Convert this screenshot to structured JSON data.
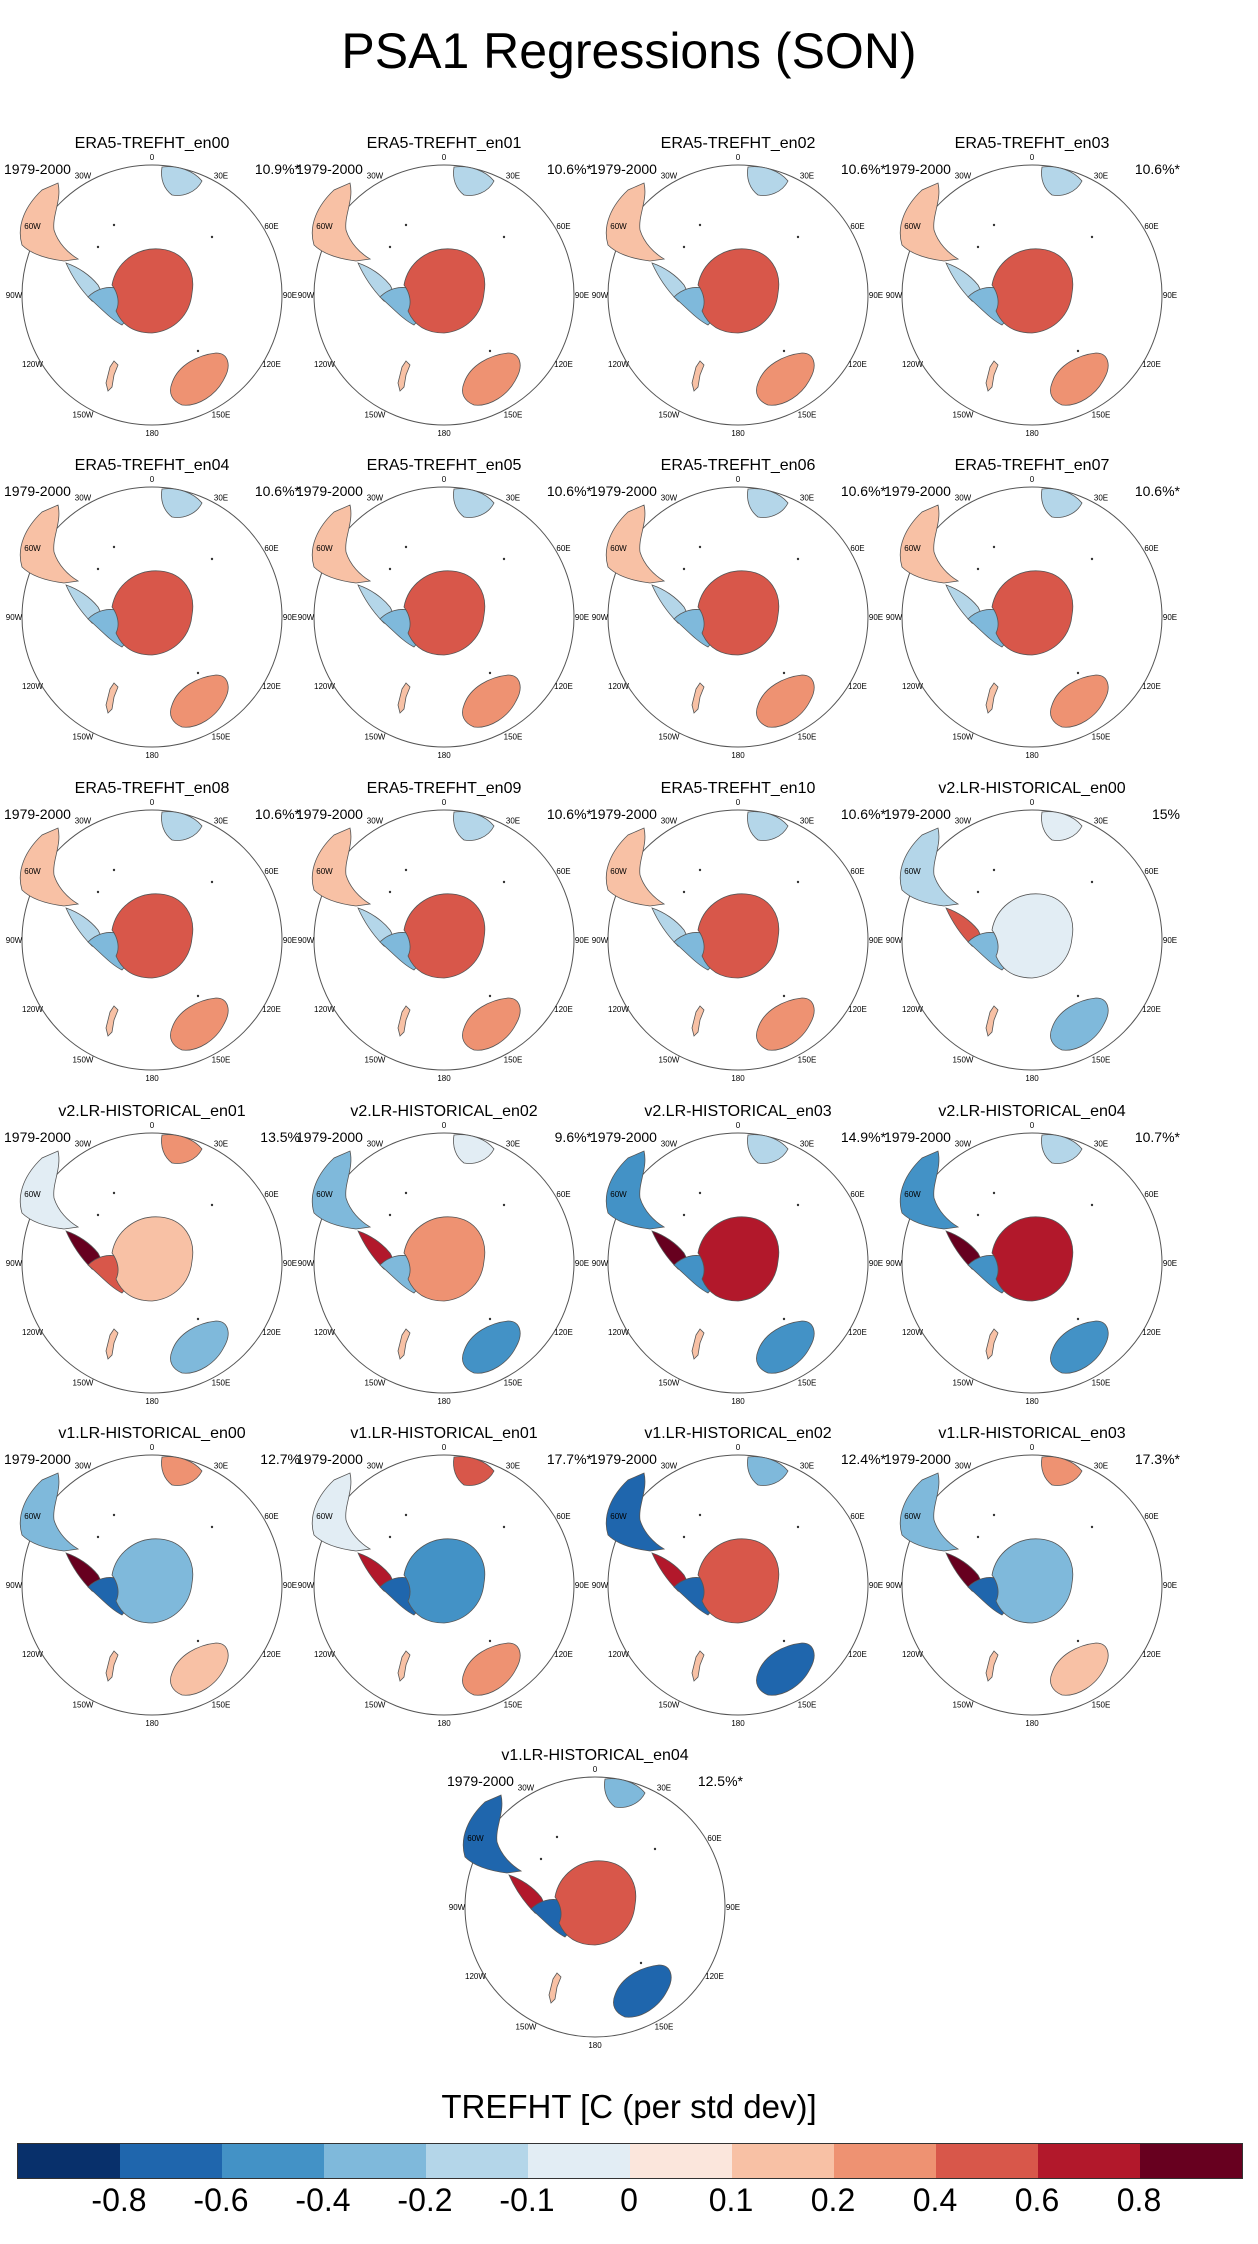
{
  "title": "PSA1 Regressions (SON)",
  "period": "1979-2000",
  "lon_labels": [
    "0",
    "30E",
    "60E",
    "90E",
    "120E",
    "150E",
    "180",
    "150W",
    "120W",
    "90W",
    "60W",
    "30W"
  ],
  "panels": [
    {
      "name": "ERA5-TREFHT_en00",
      "pct": "10.9%*",
      "scheme": "era"
    },
    {
      "name": "ERA5-TREFHT_en01",
      "pct": "10.6%*",
      "scheme": "era"
    },
    {
      "name": "ERA5-TREFHT_en02",
      "pct": "10.6%*",
      "scheme": "era"
    },
    {
      "name": "ERA5-TREFHT_en03",
      "pct": "10.6%*",
      "scheme": "era"
    },
    {
      "name": "ERA5-TREFHT_en04",
      "pct": "10.6%*",
      "scheme": "era"
    },
    {
      "name": "ERA5-TREFHT_en05",
      "pct": "10.6%*",
      "scheme": "era"
    },
    {
      "name": "ERA5-TREFHT_en06",
      "pct": "10.6%*",
      "scheme": "era"
    },
    {
      "name": "ERA5-TREFHT_en07",
      "pct": "10.6%*",
      "scheme": "era"
    },
    {
      "name": "ERA5-TREFHT_en08",
      "pct": "10.6%*",
      "scheme": "era"
    },
    {
      "name": "ERA5-TREFHT_en09",
      "pct": "10.6%*",
      "scheme": "era"
    },
    {
      "name": "ERA5-TREFHT_en10",
      "pct": "10.6%*",
      "scheme": "era"
    },
    {
      "name": "v2.LR-HISTORICAL_en00",
      "pct": "15%",
      "scheme": "v2a"
    },
    {
      "name": "v2.LR-HISTORICAL_en01",
      "pct": "13.5%",
      "scheme": "v2b"
    },
    {
      "name": "v2.LR-HISTORICAL_en02",
      "pct": "9.6%*",
      "scheme": "v2c"
    },
    {
      "name": "v2.LR-HISTORICAL_en03",
      "pct": "14.9%*",
      "scheme": "v2d"
    },
    {
      "name": "v2.LR-HISTORICAL_en04",
      "pct": "10.7%*",
      "scheme": "v2d"
    },
    {
      "name": "v1.LR-HISTORICAL_en00",
      "pct": "12.7%",
      "scheme": "v1a"
    },
    {
      "name": "v1.LR-HISTORICAL_en01",
      "pct": "17.7%*",
      "scheme": "v1b"
    },
    {
      "name": "v1.LR-HISTORICAL_en02",
      "pct": "12.4%*",
      "scheme": "v1c"
    },
    {
      "name": "v1.LR-HISTORICAL_en03",
      "pct": "17.3%*",
      "scheme": "v1a"
    },
    {
      "name": "v1.LR-HISTORICAL_en04",
      "pct": "12.5%*",
      "scheme": "v1c"
    }
  ],
  "colorbar": {
    "title": "TREFHT [C (per std dev)]",
    "colors": [
      "#08306b",
      "#1f66ad",
      "#4392c6",
      "#7fb9db",
      "#b4d6e9",
      "#e2edf4",
      "#fbe6dc",
      "#f8c1a5",
      "#ee9272",
      "#d8574a",
      "#b2182b",
      "#67001f"
    ],
    "labels": [
      "-0.8",
      "-0.6",
      "-0.4",
      "-0.2",
      "-0.1",
      "0",
      "0.1",
      "0.2",
      "0.4",
      "0.6",
      "0.8"
    ]
  }
}
